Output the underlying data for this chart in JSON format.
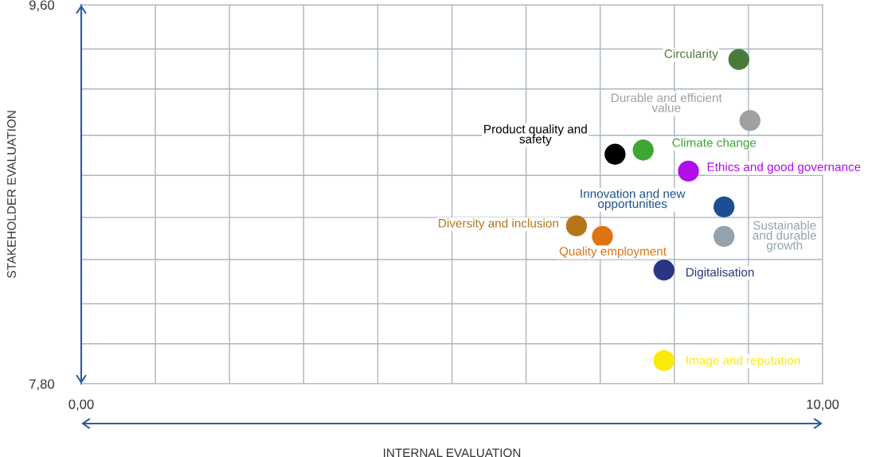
{
  "chart_data": {
    "type": "scatter",
    "xlabel": "INTERNAL EVALUATION",
    "ylabel": "STAKEHOLDER EVALUATION",
    "xlim": [
      0,
      10
    ],
    "ylim": [
      7.8,
      9.6
    ],
    "xticks": [
      {
        "value": 0,
        "label": "0,00"
      },
      {
        "value": 1,
        "label": null
      },
      {
        "value": 2,
        "label": null
      },
      {
        "value": 3,
        "label": null
      },
      {
        "value": 4,
        "label": null
      },
      {
        "value": 5,
        "label": null
      },
      {
        "value": 6,
        "label": null
      },
      {
        "value": 7,
        "label": null
      },
      {
        "value": 8,
        "label": null
      },
      {
        "value": 9,
        "label": null
      },
      {
        "value": 10,
        "label": "10,00"
      }
    ],
    "yticks": [
      {
        "value": 7.8,
        "label": "7,80"
      },
      {
        "value": 7.99,
        "label": null
      },
      {
        "value": 8.18,
        "label": null
      },
      {
        "value": 8.39,
        "label": null
      },
      {
        "value": 8.59,
        "label": null
      },
      {
        "value": 8.79,
        "label": null
      },
      {
        "value": 8.98,
        "label": null
      },
      {
        "value": 9.2,
        "label": null
      },
      {
        "value": 9.39,
        "label": null
      },
      {
        "value": 9.6,
        "label": "9,60"
      }
    ],
    "grid": true,
    "legend": false,
    "marker": "circle",
    "series": [
      {
        "name": "Circularity",
        "color": "#4a7a3a",
        "x": [
          8.87
        ],
        "values": [
          9.34
        ]
      },
      {
        "name": "Durable and efficient\nvalue",
        "color": "#a0a0a0",
        "x": [
          9.02
        ],
        "values": [
          9.05
        ]
      },
      {
        "name": "Product quality and\nsafety",
        "color": "#000000",
        "x": [
          7.2
        ],
        "values": [
          8.89
        ]
      },
      {
        "name": "Climate change",
        "color": "#3fa535",
        "x": [
          7.58
        ],
        "values": [
          8.91
        ]
      },
      {
        "name": "Ethics and good governance",
        "color": "#b10ee8",
        "x": [
          8.19
        ],
        "values": [
          8.81
        ]
      },
      {
        "name": "Innovation and new\nopportunities",
        "color": "#1b4f91",
        "x": [
          8.67
        ],
        "values": [
          8.64
        ]
      },
      {
        "name": "Diversity and inclusion",
        "color": "#b5761a",
        "x": [
          6.68
        ],
        "values": [
          8.55
        ]
      },
      {
        "name": "Sustainable\nand durable\ngrowth",
        "color": "#93a2ac",
        "x": [
          8.67
        ],
        "values": [
          8.5
        ]
      },
      {
        "name": "Quality employment",
        "color": "#dd7412",
        "x": [
          7.03
        ],
        "values": [
          8.5
        ]
      },
      {
        "name": "Digitalisation",
        "color": "#2a3585",
        "x": [
          7.86
        ],
        "values": [
          8.34
        ]
      },
      {
        "name": "Image and reputation",
        "color": "#fbe90a",
        "x": [
          7.86
        ],
        "values": [
          7.91
        ]
      }
    ]
  }
}
